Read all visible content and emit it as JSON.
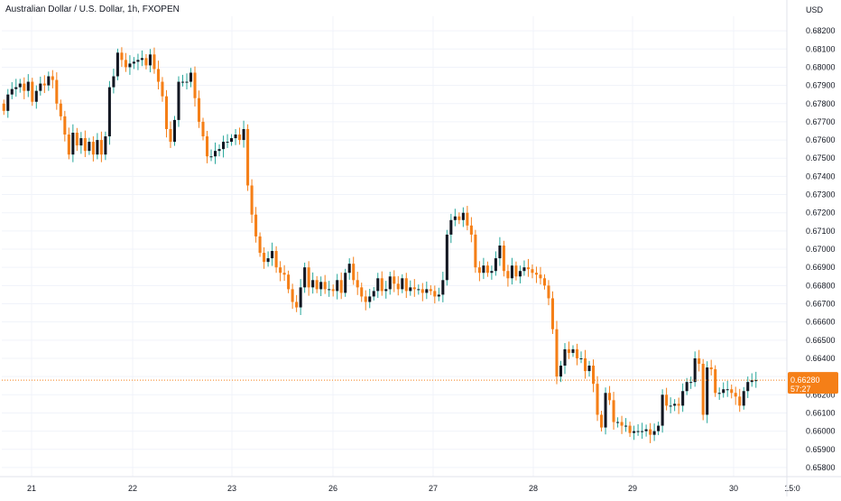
{
  "header": {
    "title": "Australian Dollar / U.S. Dollar, 1h, FXOPEN",
    "currency": "USD"
  },
  "price_tag": {
    "value": "0.66280",
    "countdown": "57:27"
  },
  "colors": {
    "up": "#131722",
    "down": "#f57f17",
    "wick_up": "#26a69a",
    "wick_down": "#f57f17",
    "grid": "#f0f3fa",
    "price_line": "#f57f17",
    "axis_text": "#131722"
  },
  "chart_data": {
    "type": "candlestick",
    "title": "Australian Dollar / U.S. Dollar, 1h, FXOPEN",
    "ylim": [
      0.6575,
      0.6828
    ],
    "y_ticks": [
      "0.68200",
      "0.68100",
      "0.68000",
      "0.67900",
      "0.67800",
      "0.67700",
      "0.67600",
      "0.67500",
      "0.67400",
      "0.67300",
      "0.67200",
      "0.67100",
      "0.67000",
      "0.66900",
      "0.66800",
      "0.66700",
      "0.66600",
      "0.66500",
      "0.66400",
      "0.66300",
      "0.66200",
      "0.66100",
      "0.66000",
      "0.65900",
      "0.65800"
    ],
    "x_ticks": [
      "21",
      "22",
      "23",
      "26",
      "27",
      "28",
      "29",
      "30",
      "15:0"
    ],
    "grid": true,
    "last_price": 0.6628,
    "closes": [
      0.6776,
      0.6785,
      0.6788,
      0.6789,
      0.6791,
      0.6787,
      0.6792,
      0.6781,
      0.6787,
      0.6791,
      0.679,
      0.6795,
      0.6793,
      0.678,
      0.6773,
      0.6763,
      0.6752,
      0.6764,
      0.6757,
      0.6761,
      0.6754,
      0.6759,
      0.6752,
      0.676,
      0.6752,
      0.6762,
      0.6789,
      0.6795,
      0.6808,
      0.6804,
      0.68,
      0.6802,
      0.6803,
      0.6804,
      0.6805,
      0.6801,
      0.6807,
      0.6799,
      0.6792,
      0.6784,
      0.6766,
      0.6759,
      0.6771,
      0.6792,
      0.6792,
      0.6792,
      0.6797,
      0.6783,
      0.677,
      0.6762,
      0.6751,
      0.6751,
      0.6754,
      0.6755,
      0.6759,
      0.6759,
      0.6761,
      0.6763,
      0.676,
      0.6766,
      0.6735,
      0.6719,
      0.6707,
      0.6698,
      0.6693,
      0.6695,
      0.6699,
      0.669,
      0.6687,
      0.6686,
      0.6678,
      0.6671,
      0.6668,
      0.6679,
      0.669,
      0.6679,
      0.6683,
      0.6678,
      0.6682,
      0.6678,
      0.6678,
      0.6677,
      0.6683,
      0.6676,
      0.6687,
      0.6692,
      0.6683,
      0.6679,
      0.6674,
      0.6671,
      0.6674,
      0.6677,
      0.6684,
      0.6677,
      0.6678,
      0.6685,
      0.6681,
      0.6678,
      0.6684,
      0.6677,
      0.6679,
      0.6678,
      0.6678,
      0.6676,
      0.6678,
      0.6677,
      0.6674,
      0.6675,
      0.6683,
      0.6708,
      0.6716,
      0.6718,
      0.6716,
      0.672,
      0.6713,
      0.6708,
      0.669,
      0.6687,
      0.6691,
      0.6687,
      0.6688,
      0.6695,
      0.6702,
      0.6688,
      0.6684,
      0.6691,
      0.6685,
      0.6688,
      0.669,
      0.6689,
      0.6687,
      0.6686,
      0.6684,
      0.668,
      0.6673,
      0.6656,
      0.663,
      0.6636,
      0.6645,
      0.6643,
      0.6645,
      0.664,
      0.664,
      0.6633,
      0.6636,
      0.6626,
      0.6609,
      0.6602,
      0.6621,
      0.6617,
      0.6605,
      0.6605,
      0.6603,
      0.6603,
      0.6599,
      0.66,
      0.66,
      0.66,
      0.6601,
      0.6598,
      0.66,
      0.6603,
      0.662,
      0.6614,
      0.6614,
      0.6615,
      0.6614,
      0.6622,
      0.6627,
      0.6627,
      0.664,
      0.6637,
      0.6609,
      0.6635,
      0.6634,
      0.6621,
      0.6621,
      0.6623,
      0.6623,
      0.6621,
      0.6619,
      0.6614,
      0.6622,
      0.6627,
      0.6628,
      0.6628
    ]
  }
}
